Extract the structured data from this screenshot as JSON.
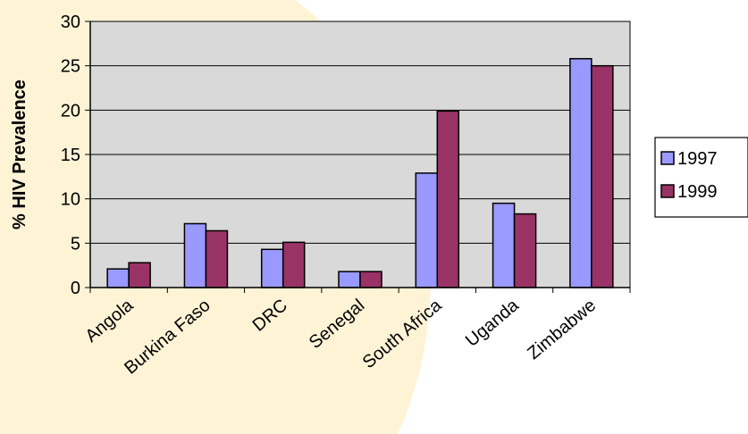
{
  "chart_data": {
    "type": "bar",
    "title": "",
    "xlabel": "",
    "ylabel": "% HIV Prevalence",
    "ylim": [
      0,
      30
    ],
    "yticks": [
      0,
      5,
      10,
      15,
      20,
      25,
      30
    ],
    "grid": true,
    "legend_position": "right",
    "categories": [
      "Angola",
      "Burkina Faso",
      "DRC",
      "Senegal",
      "South Africa",
      "Uganda",
      "Zimbabwe"
    ],
    "series": [
      {
        "name": "1997",
        "color": "#9999FF",
        "values": [
          2.1,
          7.2,
          4.3,
          1.8,
          12.9,
          9.5,
          25.8
        ]
      },
      {
        "name": "1999",
        "color": "#993366",
        "values": [
          2.8,
          6.4,
          5.1,
          1.8,
          19.9,
          8.3,
          25.0
        ]
      }
    ],
    "plot_background": "#D9D9D9",
    "decor_color": "#FFF3D6"
  }
}
